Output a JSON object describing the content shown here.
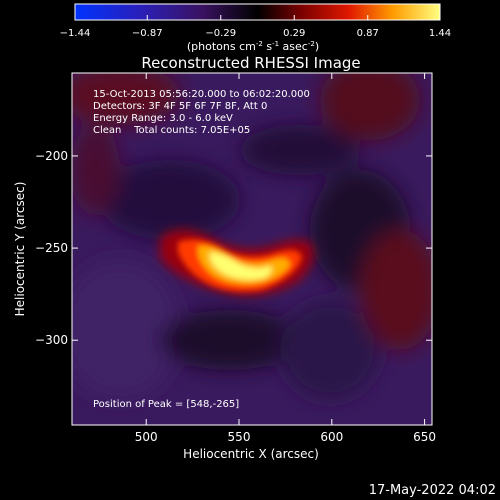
{
  "chart_data": {
    "type": "heatmap",
    "title": "Reconstructed RHESSI Image",
    "xlabel": "Heliocentric X (arcsec)",
    "ylabel": "Heliocentric Y (arcsec)",
    "x_ticks": [
      "500",
      "550",
      "600",
      "650"
    ],
    "y_ticks": [
      "-200",
      "-250",
      "-300"
    ],
    "xlim": [
      460,
      654
    ],
    "ylim": [
      -346,
      -155
    ],
    "colorbar": {
      "ticks": [
        "-1.44",
        "-0.87",
        "-0.29",
        "0.29",
        "0.87",
        "1.44"
      ],
      "range": [
        -1.44,
        1.44
      ],
      "unit_label": "(photons cm",
      "unit_exp1": "-2",
      "unit_mid": " s",
      "unit_exp2": "-1",
      "unit_mid2": " asec",
      "unit_exp3": "-2",
      "unit_end": ")"
    },
    "annotations": [
      "15-Oct-2013 05:56:20.000 to 06:02:20.000",
      "Detectors: 3F 4F 5F 6F 7F 8F, Att 0",
      "Energy Range: 3.0 - 6.0 keV",
      "Clean    Total counts: 7.05E+05"
    ],
    "peak_label": "Position of Peak = [548,-265]",
    "peak": {
      "x": 548,
      "y": -265,
      "value": 1.44
    },
    "timestamp": "17-May-2022 04:02"
  }
}
